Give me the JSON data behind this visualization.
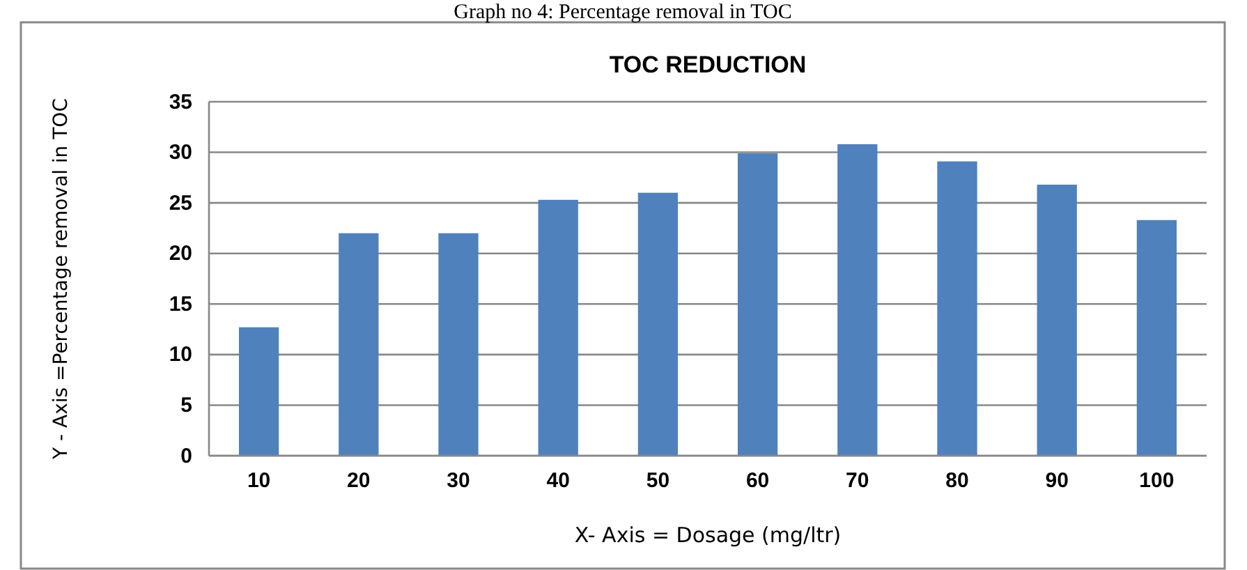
{
  "chart_data": {
    "type": "bar",
    "title": "TOC REDUCTION",
    "annotations": [
      "Graph no 4: Percentage removal in TOC"
    ],
    "xlabel": "X- Axis = Dosage (mg/ltr)",
    "ylabel": "Y - Axis =Percentage removal  in TOC",
    "categories": [
      "10",
      "20",
      "30",
      "40",
      "50",
      "60",
      "70",
      "80",
      "90",
      "100"
    ],
    "values": [
      12.7,
      22,
      22,
      25.3,
      26,
      29.9,
      30.8,
      29.1,
      26.8,
      23.3
    ],
    "color": "#4f81bd",
    "ylim": [
      0,
      35
    ],
    "yticks": [
      0,
      5,
      10,
      15,
      20,
      25,
      30,
      35
    ],
    "grid": "y"
  }
}
